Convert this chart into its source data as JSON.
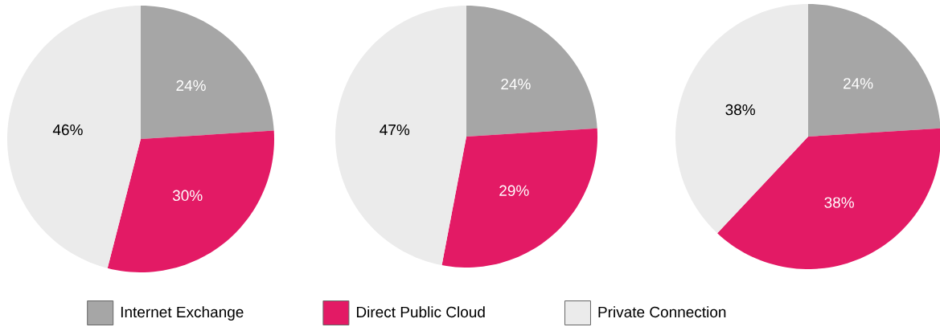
{
  "chart_data": [
    {
      "type": "pie",
      "categories": [
        "Internet Exchange",
        "Direct Public Cloud",
        "Private Connection"
      ],
      "values": [
        24,
        30,
        46
      ],
      "value_labels": [
        "24%",
        "30%",
        "46%"
      ],
      "colors": [
        "#a6a6a6",
        "#e31a65",
        "#ebebeb"
      ],
      "legend": "bottom"
    },
    {
      "type": "pie",
      "values": [
        24,
        29,
        47
      ],
      "value_labels": [
        "24%",
        "29%",
        "47%"
      ],
      "colors": [
        "#a6a6a6",
        "#e31a65",
        "#ebebeb"
      ]
    },
    {
      "type": "pie",
      "values": [
        24,
        38,
        38
      ],
      "value_labels": [
        "24%",
        "38%",
        "38%"
      ],
      "colors": [
        "#a6a6a6",
        "#e31a65",
        "#ebebeb"
      ]
    }
  ]
}
